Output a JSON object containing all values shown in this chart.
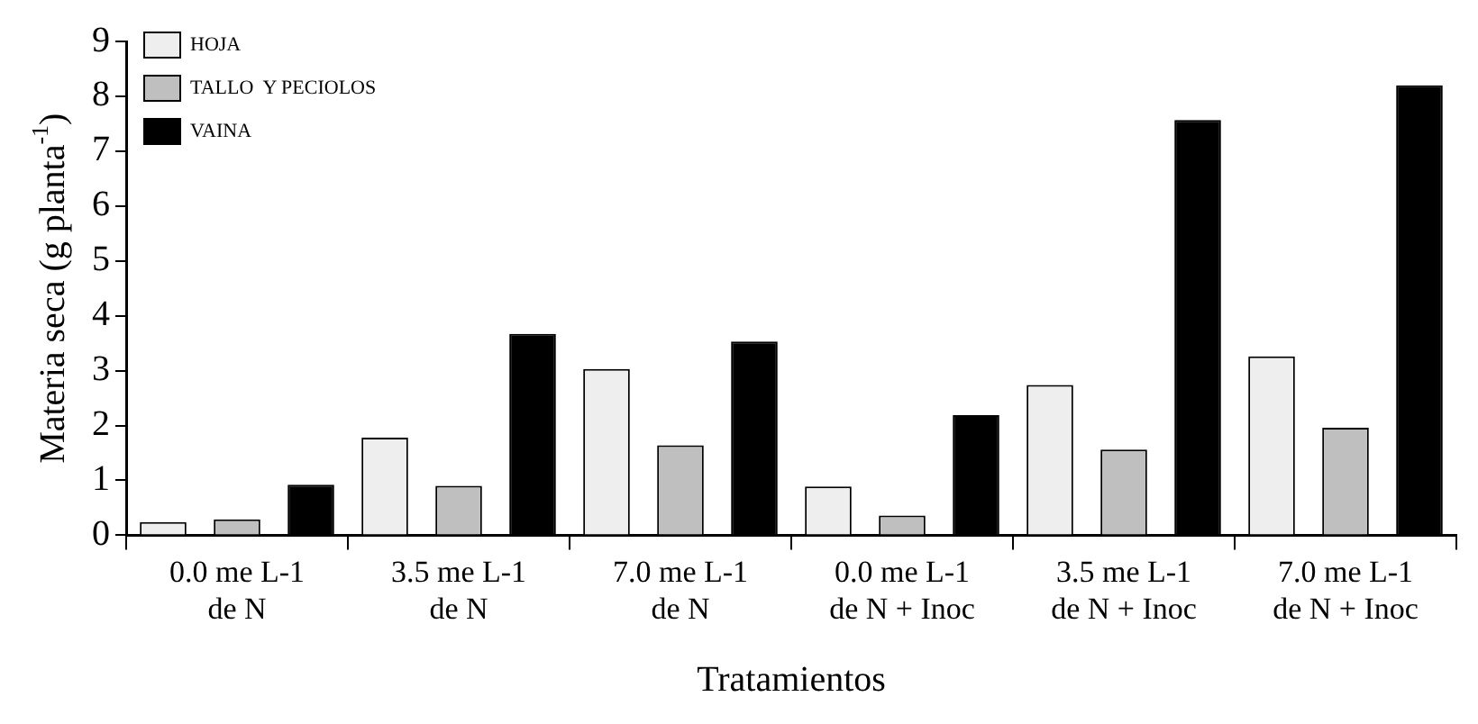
{
  "chart_data": {
    "type": "bar",
    "xlabel": "Tratamientos",
    "ylabel": "Materia seca (g planta$^{-1}$)",
    "categories": [
      "0.0 me L-1\nde N",
      "3.5 me L-1\nde N",
      "7.0 me L-1\nde N",
      "0.0 me L-1\nde N + Inoc",
      "3.5 me L-1\nde N + Inoc",
      "7.0 me L-1\nde N + Inoc"
    ],
    "series": [
      {
        "name": "HOJA",
        "color": "#eeeeee",
        "values": [
          0.24,
          1.78,
          3.03,
          0.89,
          2.74,
          3.26
        ]
      },
      {
        "name": "TALLO  Y PECIOLOS",
        "color": "#bfbfbf",
        "values": [
          0.29,
          0.9,
          1.64,
          0.36,
          1.56,
          1.96
        ]
      },
      {
        "name": "VAINA",
        "color": "#000000",
        "values": [
          0.92,
          3.67,
          3.53,
          2.19,
          7.57,
          8.2
        ]
      }
    ],
    "ylim": [
      0,
      9
    ],
    "yticks": [
      0,
      1,
      2,
      3,
      4,
      5,
      6,
      7,
      8,
      9
    ],
    "grid": false,
    "legend": "top left"
  }
}
